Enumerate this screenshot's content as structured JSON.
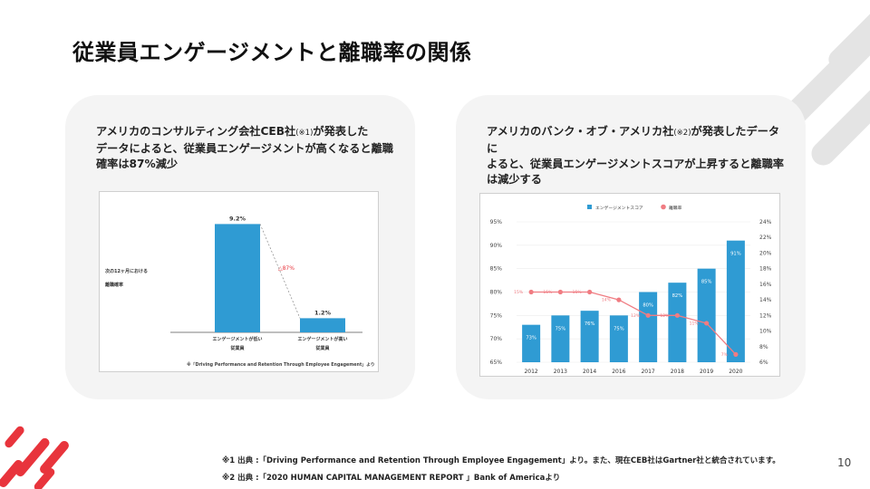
{
  "slide": {
    "title": "従業員エンゲージメントと離職率の関係",
    "page_number": "10"
  },
  "left_card": {
    "text_line1_a": "アメリカのコンサルティング会社CEB社",
    "text_line1_note": "(※1)",
    "text_line1_b": "が発表した",
    "text_line2": "データによると、従業員エンゲージメントが高くなると離職",
    "text_line3": "確率は87%減少"
  },
  "right_card": {
    "text_line1_a": "アメリカのバンク・オブ・アメリカ社",
    "text_line1_note": "(※2)",
    "text_line1_b": "が発表したデータに",
    "text_line2": "よると、従業員エンゲージメントスコアが上昇すると離職率",
    "text_line3": "は減少する"
  },
  "chart_data": [
    {
      "type": "bar",
      "categories": [
        "エンゲージメントが低い従業員",
        "エンゲージメントが高い従業員"
      ],
      "category_lines": [
        [
          "エンゲージメントが低い",
          "従業員"
        ],
        [
          "エンゲージメントが高い",
          "従業員"
        ]
      ],
      "values": [
        9.2,
        1.2
      ],
      "value_labels": [
        "9.2%",
        "1.2%"
      ],
      "ylabel_lines": [
        "次の12ヶ月における",
        "離職確率"
      ],
      "annotation": "△87%",
      "source": "※「Driving Performance and Retention Through Employee Engagement」より",
      "ylim": [
        0,
        10
      ],
      "bar_color": "#2f9bd3",
      "annotation_color": "#e8343c"
    },
    {
      "type": "bar+line",
      "categories": [
        "2012",
        "2013",
        "2014",
        "2016",
        "2017",
        "2018",
        "2019",
        "2020"
      ],
      "series": [
        {
          "name": "エンゲージメントスコア",
          "type": "bar",
          "axis": "left",
          "values": [
            73,
            75,
            76,
            75,
            80,
            82,
            85,
            91
          ],
          "labels": [
            "73%",
            "75%",
            "76%",
            "75%",
            "80%",
            "82%",
            "85%",
            "91%"
          ],
          "color": "#2f9bd3"
        },
        {
          "name": "離職率",
          "type": "line",
          "axis": "right",
          "values": [
            15,
            15,
            15,
            14,
            12,
            12,
            11,
            7
          ],
          "labels": [
            "15%",
            "15%",
            "15%",
            "14%",
            "12%",
            "12%",
            "11%",
            "7%"
          ],
          "color": "#f07c82"
        }
      ],
      "left_axis": {
        "min": 65,
        "max": 95,
        "ticks": [
          "65%",
          "70%",
          "75%",
          "80%",
          "85%",
          "90%",
          "95%"
        ]
      },
      "right_axis": {
        "min": 6,
        "max": 24,
        "ticks": [
          "6%",
          "8%",
          "10%",
          "12%",
          "14%",
          "16%",
          "18%",
          "20%",
          "22%",
          "24%"
        ]
      },
      "legend_position": "top"
    }
  ],
  "footnotes": {
    "note1": "※1 出典 :「Driving Performance and Retention Through Employee Engagement」より。また、現在CEB社はGartner社と統合されています。",
    "note2": "※2 出典 :「2020 HUMAN CAPITAL MANAGEMENT REPORT 」Bank of Americaより"
  }
}
